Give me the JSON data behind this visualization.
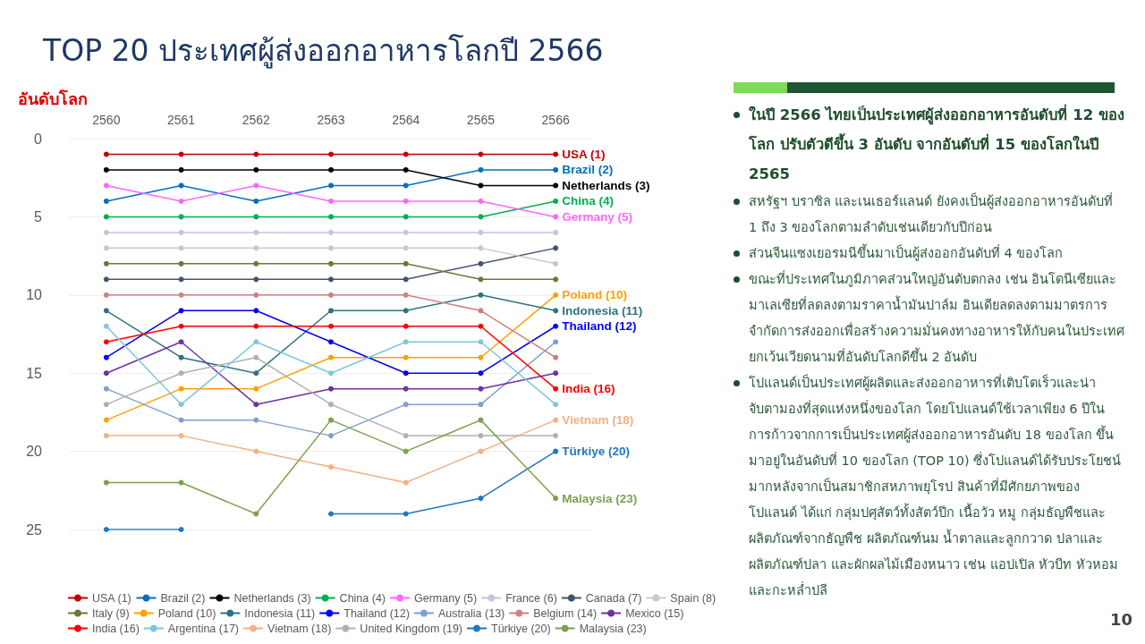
{
  "chart_data": {
    "type": "line",
    "title": "TOP 20 ประเทศผู้ส่งออกอาหารโลกปี 2566",
    "ylabel": "อันดับโลก",
    "categories": [
      "2560",
      "2561",
      "2562",
      "2563",
      "2564",
      "2565",
      "2566"
    ],
    "ylim": [
      25,
      0
    ],
    "yticks": [
      0,
      5,
      10,
      15,
      20,
      25
    ],
    "grid": "y",
    "legend": "bottom",
    "marker": "circle",
    "series": [
      {
        "name": "USA (1)",
        "color": "#c00000",
        "values": [
          1,
          1,
          1,
          1,
          1,
          1,
          1
        ]
      },
      {
        "name": "Brazil (2)",
        "color": "#0070c0",
        "values": [
          4,
          3,
          4,
          3,
          3,
          2,
          2
        ]
      },
      {
        "name": "Netherlands (3)",
        "color": "#000000",
        "values": [
          2,
          2,
          2,
          2,
          2,
          3,
          3
        ]
      },
      {
        "name": "China (4)",
        "color": "#00b050",
        "values": [
          5,
          5,
          5,
          5,
          5,
          5,
          4
        ]
      },
      {
        "name": "Germany (5)",
        "color": "#ff66ff",
        "values": [
          3,
          4,
          3,
          4,
          4,
          4,
          5
        ]
      },
      {
        "name": "France (6)",
        "color": "#c5c5dc",
        "values": [
          6,
          6,
          6,
          6,
          6,
          6,
          6
        ]
      },
      {
        "name": "Canada (7)",
        "color": "#44546a",
        "values": [
          9,
          9,
          9,
          9,
          9,
          8,
          7
        ]
      },
      {
        "name": "Spain (8)",
        "color": "#c8c8c8",
        "values": [
          7,
          7,
          7,
          7,
          7,
          7,
          8
        ]
      },
      {
        "name": "Italy (9)",
        "color": "#667a3a",
        "values": [
          8,
          8,
          8,
          8,
          8,
          9,
          9
        ]
      },
      {
        "name": "Poland (10)",
        "color": "#ffa000",
        "values": [
          18,
          16,
          16,
          14,
          14,
          14,
          10
        ]
      },
      {
        "name": "Indonesia (11)",
        "color": "#2e7480",
        "values": [
          11,
          14,
          15,
          11,
          11,
          10,
          11
        ]
      },
      {
        "name": "Thailand (12)",
        "color": "#0000ff",
        "values": [
          14,
          11,
          11,
          13,
          15,
          15,
          12
        ]
      },
      {
        "name": "Australia (13)",
        "color": "#7f9fce",
        "values": [
          16,
          18,
          18,
          19,
          17,
          17,
          13
        ]
      },
      {
        "name": "Belgium (14)",
        "color": "#d08080",
        "values": [
          10,
          10,
          10,
          10,
          10,
          11,
          14
        ]
      },
      {
        "name": "Mexico (15)",
        "color": "#7030a0",
        "values": [
          15,
          13,
          17,
          16,
          16,
          16,
          15
        ]
      },
      {
        "name": "India (16)",
        "color": "#ff0000",
        "values": [
          13,
          12,
          12,
          12,
          12,
          12,
          16
        ]
      },
      {
        "name": "Argentina (17)",
        "color": "#7fc6dc",
        "values": [
          12,
          17,
          13,
          15,
          13,
          13,
          17
        ]
      },
      {
        "name": "Vietnam (18)",
        "color": "#f4b183",
        "values": [
          19,
          19,
          20,
          21,
          22,
          20,
          18
        ]
      },
      {
        "name": "United Kingdom (19)",
        "color": "#b0b0b0",
        "values": [
          17,
          15,
          14,
          17,
          19,
          19,
          19
        ]
      },
      {
        "name": "Türkiye (20)",
        "color": "#1f78c0",
        "values": [
          25,
          25,
          null,
          24,
          24,
          23,
          20
        ]
      },
      {
        "name": "Malaysia (23)",
        "color": "#7fa050",
        "values": [
          22,
          22,
          24,
          18,
          20,
          18,
          23
        ]
      }
    ],
    "annotations": [
      {
        "text": "USA (1)",
        "x": "2566",
        "y": 1
      },
      {
        "text": "Brazil (2)",
        "x": "2566",
        "y": 2
      },
      {
        "text": "Netherlands (3)",
        "x": "2566",
        "y": 3
      },
      {
        "text": "China (4)",
        "x": "2566",
        "y": 4
      },
      {
        "text": "Germany (5)",
        "x": "2566",
        "y": 5
      },
      {
        "text": "Poland (10)",
        "x": "2566",
        "y": 10
      },
      {
        "text": "Indonesia (11)",
        "x": "2566",
        "y": 11
      },
      {
        "text": "Thailand (12)",
        "x": "2566",
        "y": 12
      },
      {
        "text": "India (16)",
        "x": "2566",
        "y": 16
      },
      {
        "text": "Vietnam (18)",
        "x": "2566",
        "y": 18
      },
      {
        "text": "Türkiye (20)",
        "x": "2566",
        "y": 20
      },
      {
        "text": "Malaysia (23)",
        "x": "2566",
        "y": 23
      },
      "ในปี 2566 ไทยเป็นประเทศผู้ส่งออกอาหารอันดับที่ 12 ของโลก ปรับตัวดีขึ้น 3 อันดับ จากอันดับที่ 15 ของโลกในปี 2565",
      "สหรัฐฯ บราซิล และเนเธอร์แลนด์ ยังคงเป็นผู้ส่งออกอาหารอันดับที่ 1 ถึง 3 ของโลกตามลำดับเช่นเดียวกับปีก่อน",
      "ส่วนจีนแซงเยอรมนีขึ้นมาเป็นผู้ส่งออกอันดับที่ 4 ของโลก",
      "ขณะที่ประเทศในภูมิภาคส่วนใหญ่อันดับตกลง เช่น อินโดนีเซียและมาเลเซียที่ลดลงตามราคาน้ำมันปาล์ม อินเดียลดลงตามมาตรการจำกัดการส่งออกเพื่อสร้างความมั่นคงทางอาหารให้กับคนในประเทศ ยกเว้นเวียดนามที่อันดับโลกดีขึ้น 2 อันดับ",
      "โปแลนด์เป็นประเทศผู้ผลิตและส่งออกอาหารที่เติบโตเร็วและน่าจับตามองที่สุดแห่งหนึ่งของโลก โดยโปแลนด์ใช้เวลาเพียง 6 ปีในการก้าวจากการเป็นประเทศผู้ส่งออกอาหารอันดับ 18 ของโลก ขึ้นมาอยู่ในอันดับที่ 10 ของโลก (TOP 10) ซึ่งโปแลนด์ได้รับประโยชน์มากหลังจากเป็นสมาชิกสหภาพยุโรป สินค้าที่มีศักยภาพของโปแลนด์ ได้แก่ กลุ่มปศุสัตว์ทั้งสัตว์ปีก เนื้อวัว หมู กลุ่มธัญพืชและผลิตภัณฑ์จากธัญพืช ผลิตภัณฑ์นม น้ำตาลและลูกกวาด ปลาและผลิตภัณฑ์ปลา และผักผลไม้เมืองหนาว เช่น แอปเปิล หัวบีท หัวหอม และกะหล่ำปลี",
      "10"
    ]
  }
}
